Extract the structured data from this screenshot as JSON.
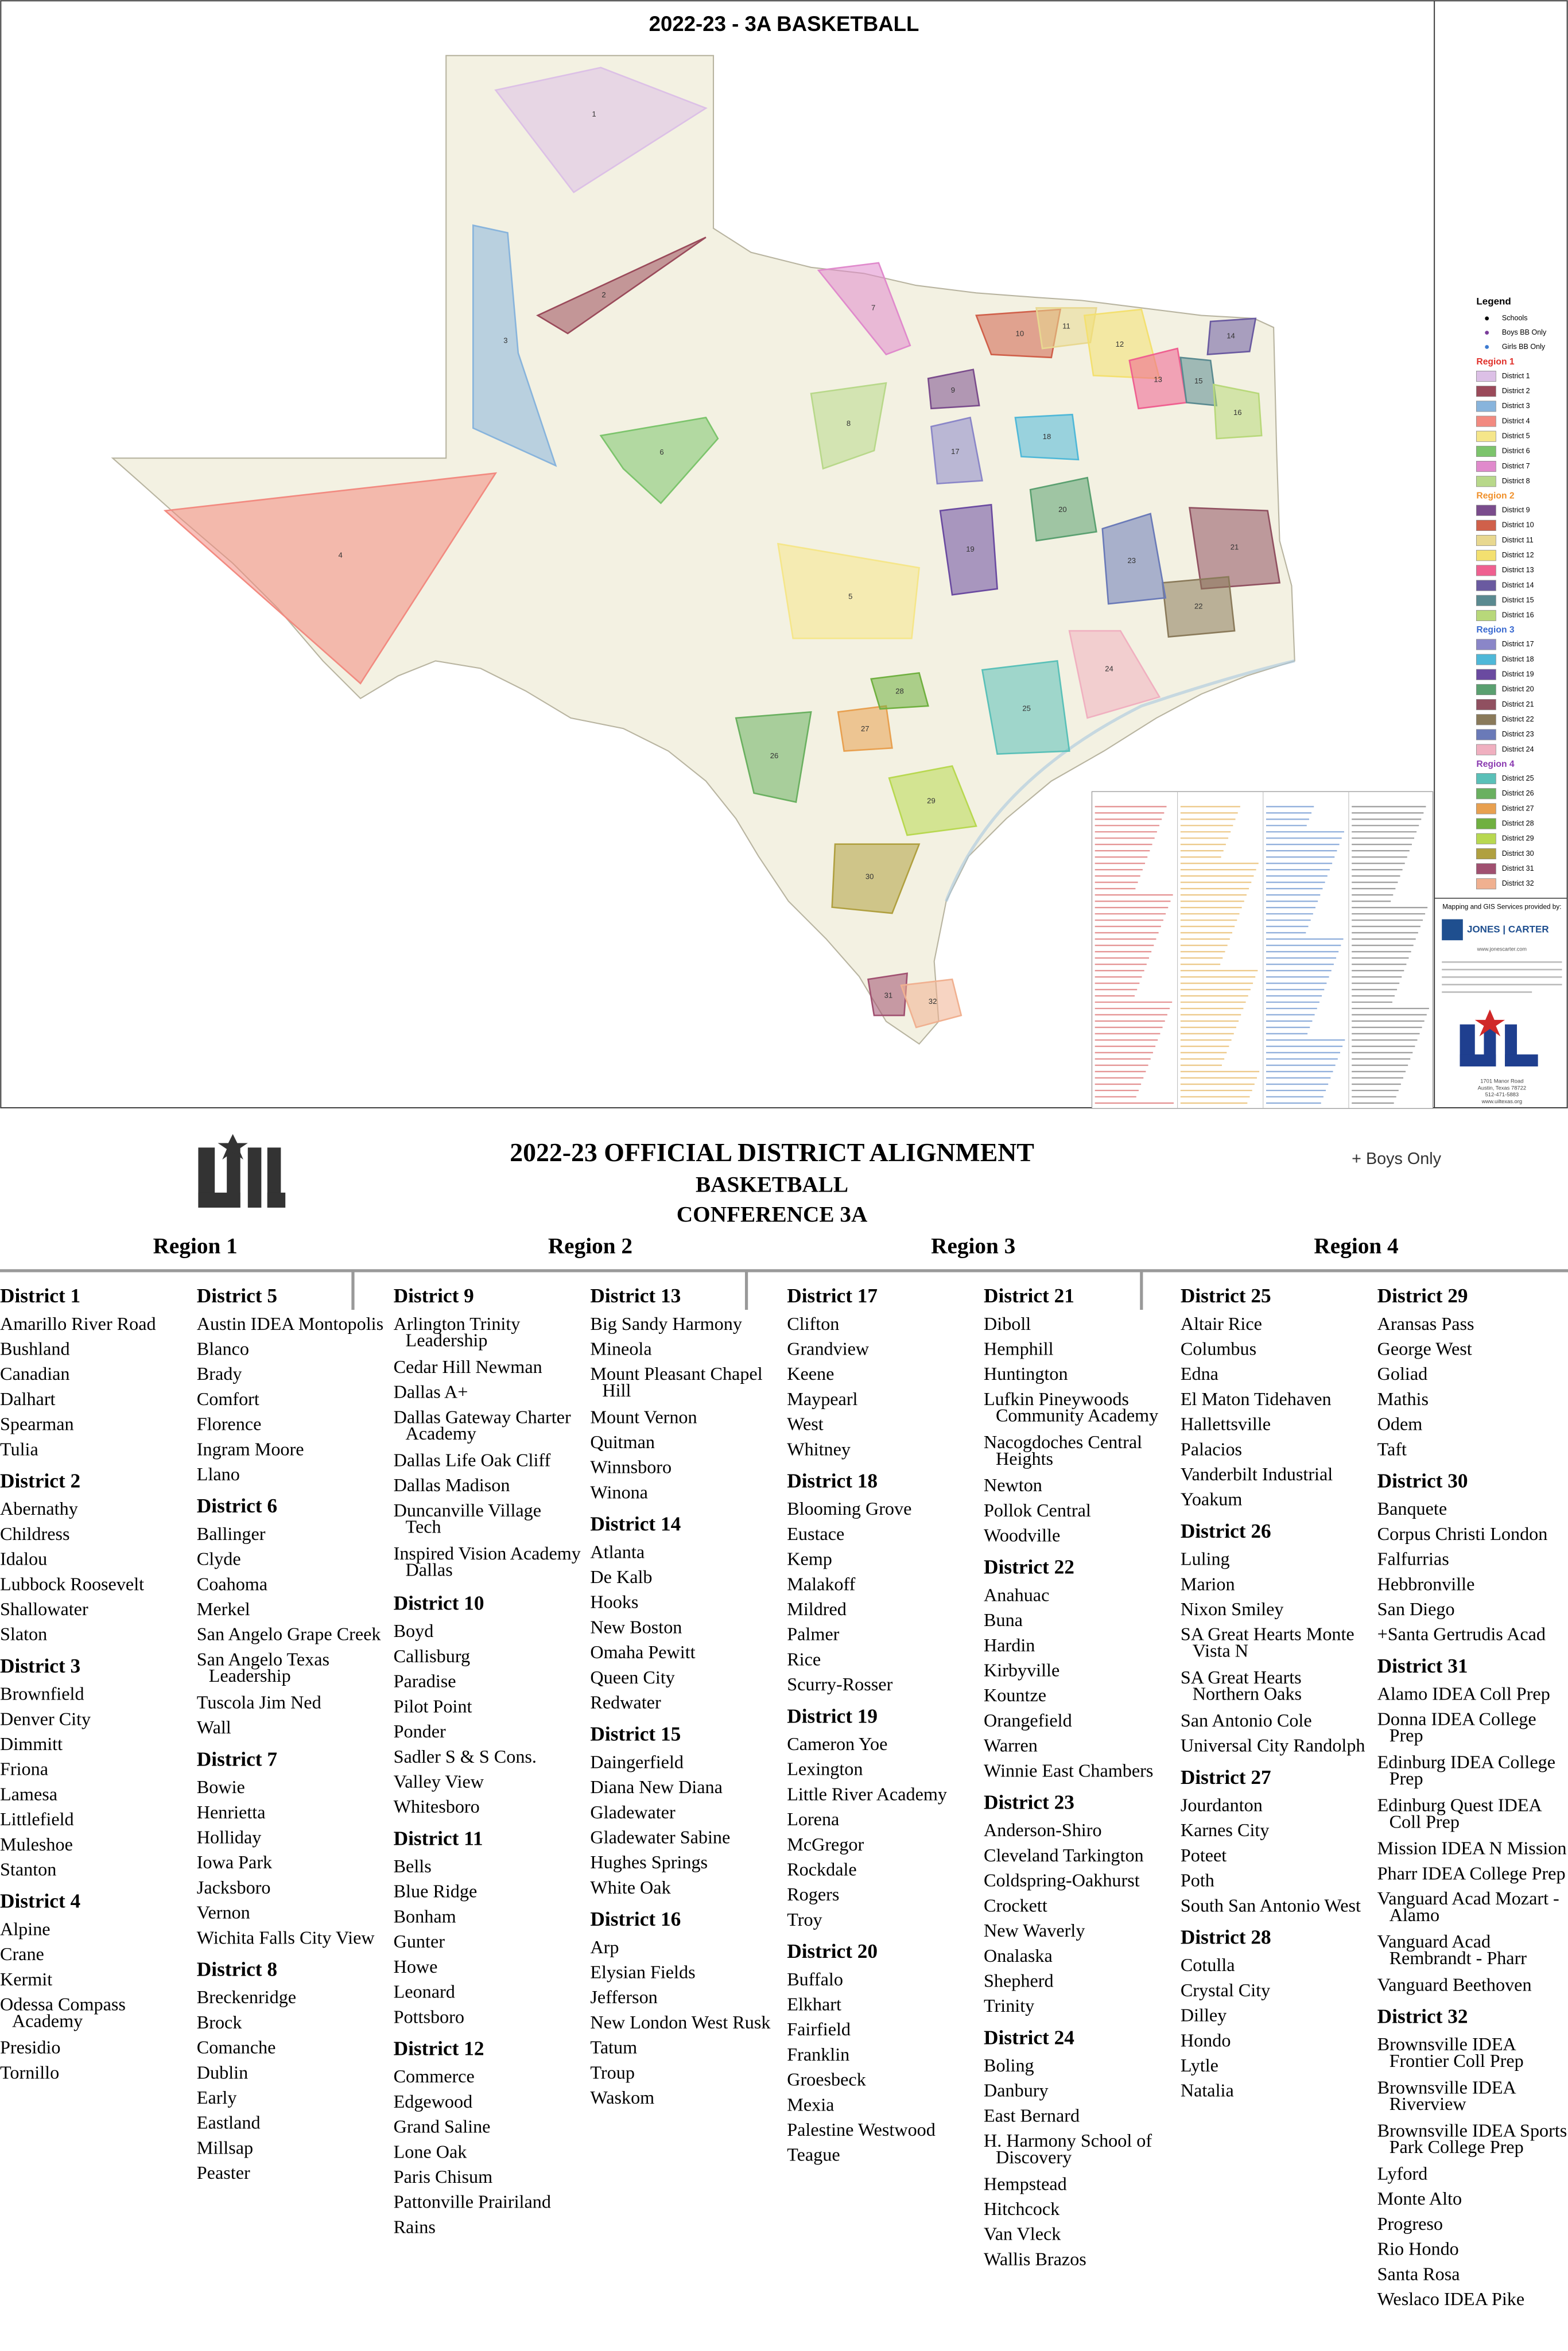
{
  "map": {
    "title": "2022-23 - 3A BASKETBALL",
    "district_labels": [
      "1",
      "2",
      "3",
      "4",
      "5",
      "6",
      "7",
      "8",
      "9",
      "10",
      "11",
      "12",
      "13",
      "14",
      "15",
      "16",
      "17",
      "18",
      "19",
      "20",
      "21",
      "22",
      "23",
      "24",
      "25",
      "26",
      "27",
      "28",
      "29",
      "30",
      "31",
      "32"
    ],
    "legend": {
      "title": "Legend",
      "symbols": [
        {
          "label": "Schools",
          "color": "#000000"
        },
        {
          "label": "Boys BB Only",
          "color": "#7a3c9a"
        },
        {
          "label": "Girls BB Only",
          "color": "#3c7ad0"
        }
      ],
      "regions": [
        {
          "name": "Region 1",
          "color": "#e0302a",
          "items": [
            {
              "label": "District 1",
              "color": "#dcc0e6"
            },
            {
              "label": "District 2",
              "color": "#9a4a5a"
            },
            {
              "label": "District 3",
              "color": "#88b4dc"
            },
            {
              "label": "District 4",
              "color": "#f28a80"
            },
            {
              "label": "District 5",
              "color": "#f5e68a"
            },
            {
              "label": "District 6",
              "color": "#7cc46c"
            },
            {
              "label": "District 7",
              "color": "#e08acc"
            },
            {
              "label": "District 8",
              "color": "#b8d88a"
            }
          ]
        },
        {
          "name": "Region 2",
          "color": "#f0902a",
          "items": [
            {
              "label": "District 9",
              "color": "#7a4c8c"
            },
            {
              "label": "District 10",
              "color": "#d0604a"
            },
            {
              "label": "District 11",
              "color": "#e8d890"
            },
            {
              "label": "District 12",
              "color": "#f3e070"
            },
            {
              "label": "District 13",
              "color": "#ef6090"
            },
            {
              "label": "District 14",
              "color": "#6a5aa0"
            },
            {
              "label": "District 15",
              "color": "#5a8a90"
            },
            {
              "label": "District 16",
              "color": "#b8d87a"
            }
          ]
        },
        {
          "name": "Region 3",
          "color": "#3a6ad0",
          "items": [
            {
              "label": "District 17",
              "color": "#8a86c8"
            },
            {
              "label": "District 18",
              "color": "#4fb8d8"
            },
            {
              "label": "District 19",
              "color": "#6a4aa0"
            },
            {
              "label": "District 20",
              "color": "#5aa070"
            },
            {
              "label": "District 21",
              "color": "#905060"
            },
            {
              "label": "District 22",
              "color": "#8a7a5a"
            },
            {
              "label": "District 23",
              "color": "#6a7ab8"
            },
            {
              "label": "District 24",
              "color": "#f0b0c0"
            }
          ]
        },
        {
          "name": "Region 4",
          "color": "#8a3ab0",
          "items": [
            {
              "label": "District 25",
              "color": "#5ac0b8"
            },
            {
              "label": "District 26",
              "color": "#6ab060"
            },
            {
              "label": "District 27",
              "color": "#e8a050"
            },
            {
              "label": "District 28",
              "color": "#70b040"
            },
            {
              "label": "District 29",
              "color": "#b8d850"
            },
            {
              "label": "District 30",
              "color": "#b0a040"
            },
            {
              "label": "District 31",
              "color": "#a05070"
            },
            {
              "label": "District 32",
              "color": "#f0b090"
            }
          ]
        }
      ]
    },
    "credits": {
      "provider": "Mapping and GIS Services provided by:",
      "company": "JONES | CARTER",
      "website": "www.jonescarter.com",
      "address": [
        "1701 Manor Road",
        "Austin, Texas 78722",
        "512-471-5883",
        "www.uiltexas.org"
      ]
    }
  },
  "header": {
    "title": "2022-23 OFFICIAL DISTRICT ALIGNMENT",
    "sport": "BASKETBALL",
    "conference": "CONFERENCE 3A",
    "note": "+ Boys Only"
  },
  "regions": [
    "Region 1",
    "Region 2",
    "Region 3",
    "Region 4"
  ],
  "columns": [
    [
      {
        "name": "District 1",
        "schools": [
          "Amarillo River Road",
          "Bushland",
          "Canadian",
          "Dalhart",
          "Spearman",
          "Tulia"
        ]
      },
      {
        "name": "District 2",
        "schools": [
          "Abernathy",
          "Childress",
          "Idalou",
          "Lubbock Roosevelt",
          "Shallowater",
          "Slaton"
        ]
      },
      {
        "name": "District 3",
        "schools": [
          "Brownfield",
          "Denver City",
          "Dimmitt",
          "Friona",
          "Lamesa",
          "Littlefield",
          "Muleshoe",
          "Stanton"
        ]
      },
      {
        "name": "District 4",
        "schools": [
          "Alpine",
          "Crane",
          "Kermit",
          [
            "Odessa Compass",
            "Academy"
          ],
          "Presidio",
          "Tornillo"
        ]
      }
    ],
    [
      {
        "name": "District 5",
        "schools": [
          "Austin IDEA Montopolis",
          "Blanco",
          "Brady",
          "Comfort",
          "Florence",
          "Ingram Moore",
          "Llano"
        ]
      },
      {
        "name": "District 6",
        "schools": [
          "Ballinger",
          "Clyde",
          "Coahoma",
          "Merkel",
          "San Angelo Grape Creek",
          [
            "San Angelo Texas",
            "Leadership"
          ],
          "Tuscola Jim Ned",
          "Wall"
        ]
      },
      {
        "name": "District 7",
        "schools": [
          "Bowie",
          "Henrietta",
          "Holliday",
          "Iowa Park",
          "Jacksboro",
          "Vernon",
          "Wichita Falls City View"
        ]
      },
      {
        "name": "District 8",
        "schools": [
          "Breckenridge",
          "Brock",
          "Comanche",
          "Dublin",
          "Early",
          "Eastland",
          "Millsap",
          "Peaster"
        ]
      }
    ],
    [
      {
        "name": "District 9",
        "schools": [
          [
            "Arlington Trinity",
            "Leadership"
          ],
          "Cedar Hill Newman",
          "Dallas A+",
          [
            "Dallas Gateway Charter",
            "Academy"
          ],
          "Dallas Life Oak Cliff",
          "Dallas Madison",
          [
            "Duncanville Village",
            "Tech"
          ],
          [
            "Inspired Vision Academy",
            "Dallas"
          ]
        ]
      },
      {
        "name": "District 10",
        "schools": [
          "Boyd",
          "Callisburg",
          "Paradise",
          "Pilot Point",
          "Ponder",
          "Sadler S & S Cons.",
          "Valley View",
          "Whitesboro"
        ]
      },
      {
        "name": "District 11",
        "schools": [
          "Bells",
          "Blue Ridge",
          "Bonham",
          "Gunter",
          "Howe",
          "Leonard",
          "Pottsboro"
        ]
      },
      {
        "name": "District 12",
        "schools": [
          "Commerce",
          "Edgewood",
          "Grand Saline",
          "Lone Oak",
          "Paris Chisum",
          "Pattonville Prairiland",
          "Rains"
        ]
      }
    ],
    [
      {
        "name": "District 13",
        "schools": [
          "Big Sandy Harmony",
          "Mineola",
          [
            "Mount Pleasant Chapel",
            "Hill"
          ],
          "Mount Vernon",
          "Quitman",
          "Winnsboro",
          "Winona"
        ]
      },
      {
        "name": "District 14",
        "schools": [
          "Atlanta",
          "De Kalb",
          "Hooks",
          "New Boston",
          "Omaha Pewitt",
          "Queen City",
          "Redwater"
        ]
      },
      {
        "name": "District 15",
        "schools": [
          "Daingerfield",
          "Diana New Diana",
          "Gladewater",
          "Gladewater Sabine",
          "Hughes Springs",
          "White Oak"
        ]
      },
      {
        "name": "District 16",
        "schools": [
          "Arp",
          "Elysian Fields",
          "Jefferson",
          "New London West Rusk",
          "Tatum",
          "Troup",
          "Waskom"
        ]
      }
    ],
    [
      {
        "name": "District 17",
        "schools": [
          "Clifton",
          "Grandview",
          "Keene",
          "Maypearl",
          "West",
          "Whitney"
        ]
      },
      {
        "name": "District 18",
        "schools": [
          "Blooming Grove",
          "Eustace",
          "Kemp",
          "Malakoff",
          "Mildred",
          "Palmer",
          "Rice",
          "Scurry-Rosser"
        ]
      },
      {
        "name": "District 19",
        "schools": [
          "Cameron Yoe",
          "Lexington",
          "Little River Academy",
          "Lorena",
          "McGregor",
          "Rockdale",
          "Rogers",
          "Troy"
        ]
      },
      {
        "name": "District 20",
        "schools": [
          "Buffalo",
          "Elkhart",
          "Fairfield",
          "Franklin",
          "Groesbeck",
          "Mexia",
          "Palestine Westwood",
          "Teague"
        ]
      }
    ],
    [
      {
        "name": "District 21",
        "schools": [
          "Diboll",
          "Hemphill",
          "Huntington",
          [
            "Lufkin Pineywoods",
            "Community Academy"
          ],
          [
            "Nacogdoches Central",
            "Heights"
          ],
          "Newton",
          "Pollok Central",
          "Woodville"
        ]
      },
      {
        "name": "District 22",
        "schools": [
          "Anahuac",
          "Buna",
          "Hardin",
          "Kirbyville",
          "Kountze",
          "Orangefield",
          "Warren",
          "Winnie East Chambers"
        ]
      },
      {
        "name": "District 23",
        "schools": [
          "Anderson-Shiro",
          "Cleveland Tarkington",
          "Coldspring-Oakhurst",
          "Crockett",
          "New Waverly",
          "Onalaska",
          "Shepherd",
          "Trinity"
        ]
      },
      {
        "name": "District 24",
        "schools": [
          "Boling",
          "Danbury",
          "East Bernard",
          [
            "H. Harmony School of",
            "Discovery"
          ],
          "Hempstead",
          "Hitchcock",
          "Van Vleck",
          "Wallis Brazos"
        ]
      }
    ],
    [
      {
        "name": "District 25",
        "schools": [
          "Altair Rice",
          "Columbus",
          "Edna",
          "El Maton Tidehaven",
          "Hallettsville",
          "Palacios",
          "Vanderbilt Industrial",
          "Yoakum"
        ]
      },
      {
        "name": "District 26",
        "schools": [
          "Luling",
          "Marion",
          "Nixon Smiley",
          [
            "SA Great Hearts Monte",
            "Vista N"
          ],
          [
            "SA Great Hearts",
            "Northern Oaks"
          ],
          "San Antonio Cole",
          "Universal City Randolph"
        ]
      },
      {
        "name": "District 27",
        "schools": [
          "Jourdanton",
          "Karnes City",
          "Poteet",
          "Poth",
          "South San Antonio West"
        ]
      },
      {
        "name": "District 28",
        "schools": [
          "Cotulla",
          "Crystal City",
          "Dilley",
          "Hondo",
          "Lytle",
          "Natalia"
        ]
      }
    ],
    [
      {
        "name": "District 29",
        "schools": [
          "Aransas Pass",
          "George West",
          "Goliad",
          "Mathis",
          "Odem",
          "Taft"
        ]
      },
      {
        "name": "District 30",
        "schools": [
          "Banquete",
          "Corpus Christi London",
          "Falfurrias",
          "Hebbronville",
          "San Diego",
          "+Santa Gertrudis Acad"
        ]
      },
      {
        "name": "District 31",
        "schools": [
          "Alamo IDEA Coll Prep",
          [
            "Donna IDEA College",
            "Prep"
          ],
          [
            "Edinburg IDEA College",
            "Prep"
          ],
          [
            "Edinburg Quest IDEA",
            "Coll Prep"
          ],
          "Mission IDEA N Mission",
          "Pharr IDEA College Prep",
          [
            "Vanguard Acad Mozart -",
            "Alamo"
          ],
          [
            "Vanguard Acad",
            "Rembrandt - Pharr"
          ],
          "Vanguard Beethoven"
        ]
      },
      {
        "name": "District 32",
        "schools": [
          [
            "Brownsville IDEA",
            "Frontier Coll Prep"
          ],
          [
            "Brownsville IDEA",
            "Riverview"
          ],
          [
            "Brownsville IDEA Sports",
            "Park College Prep"
          ],
          "Lyford",
          "Monte Alto",
          "Progreso",
          "Rio Hondo",
          "Santa Rosa",
          "Weslaco IDEA Pike"
        ]
      }
    ]
  ]
}
